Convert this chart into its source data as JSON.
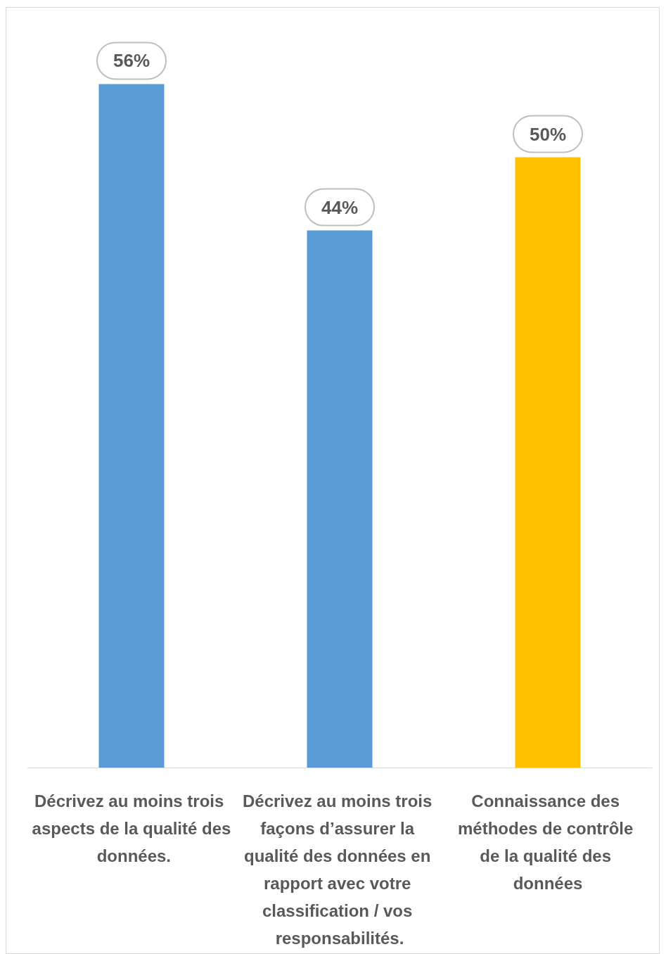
{
  "chart_data": {
    "type": "bar",
    "categories": [
      "Décrivez au moins trois aspects de la qualité des données.",
      "Décrivez au moins trois façons d’assurer la qualité des données en rapport avec votre classification / vos responsabilités.",
      "Connaissance des méthodes de contrôle de la qualité des données"
    ],
    "values": [
      56,
      44,
      50
    ],
    "colors": [
      "#5b9bd5",
      "#5b9bd5",
      "#ffc000"
    ],
    "value_labels": [
      "56%",
      "44%",
      "50%"
    ],
    "tick_labels": "x"
  }
}
